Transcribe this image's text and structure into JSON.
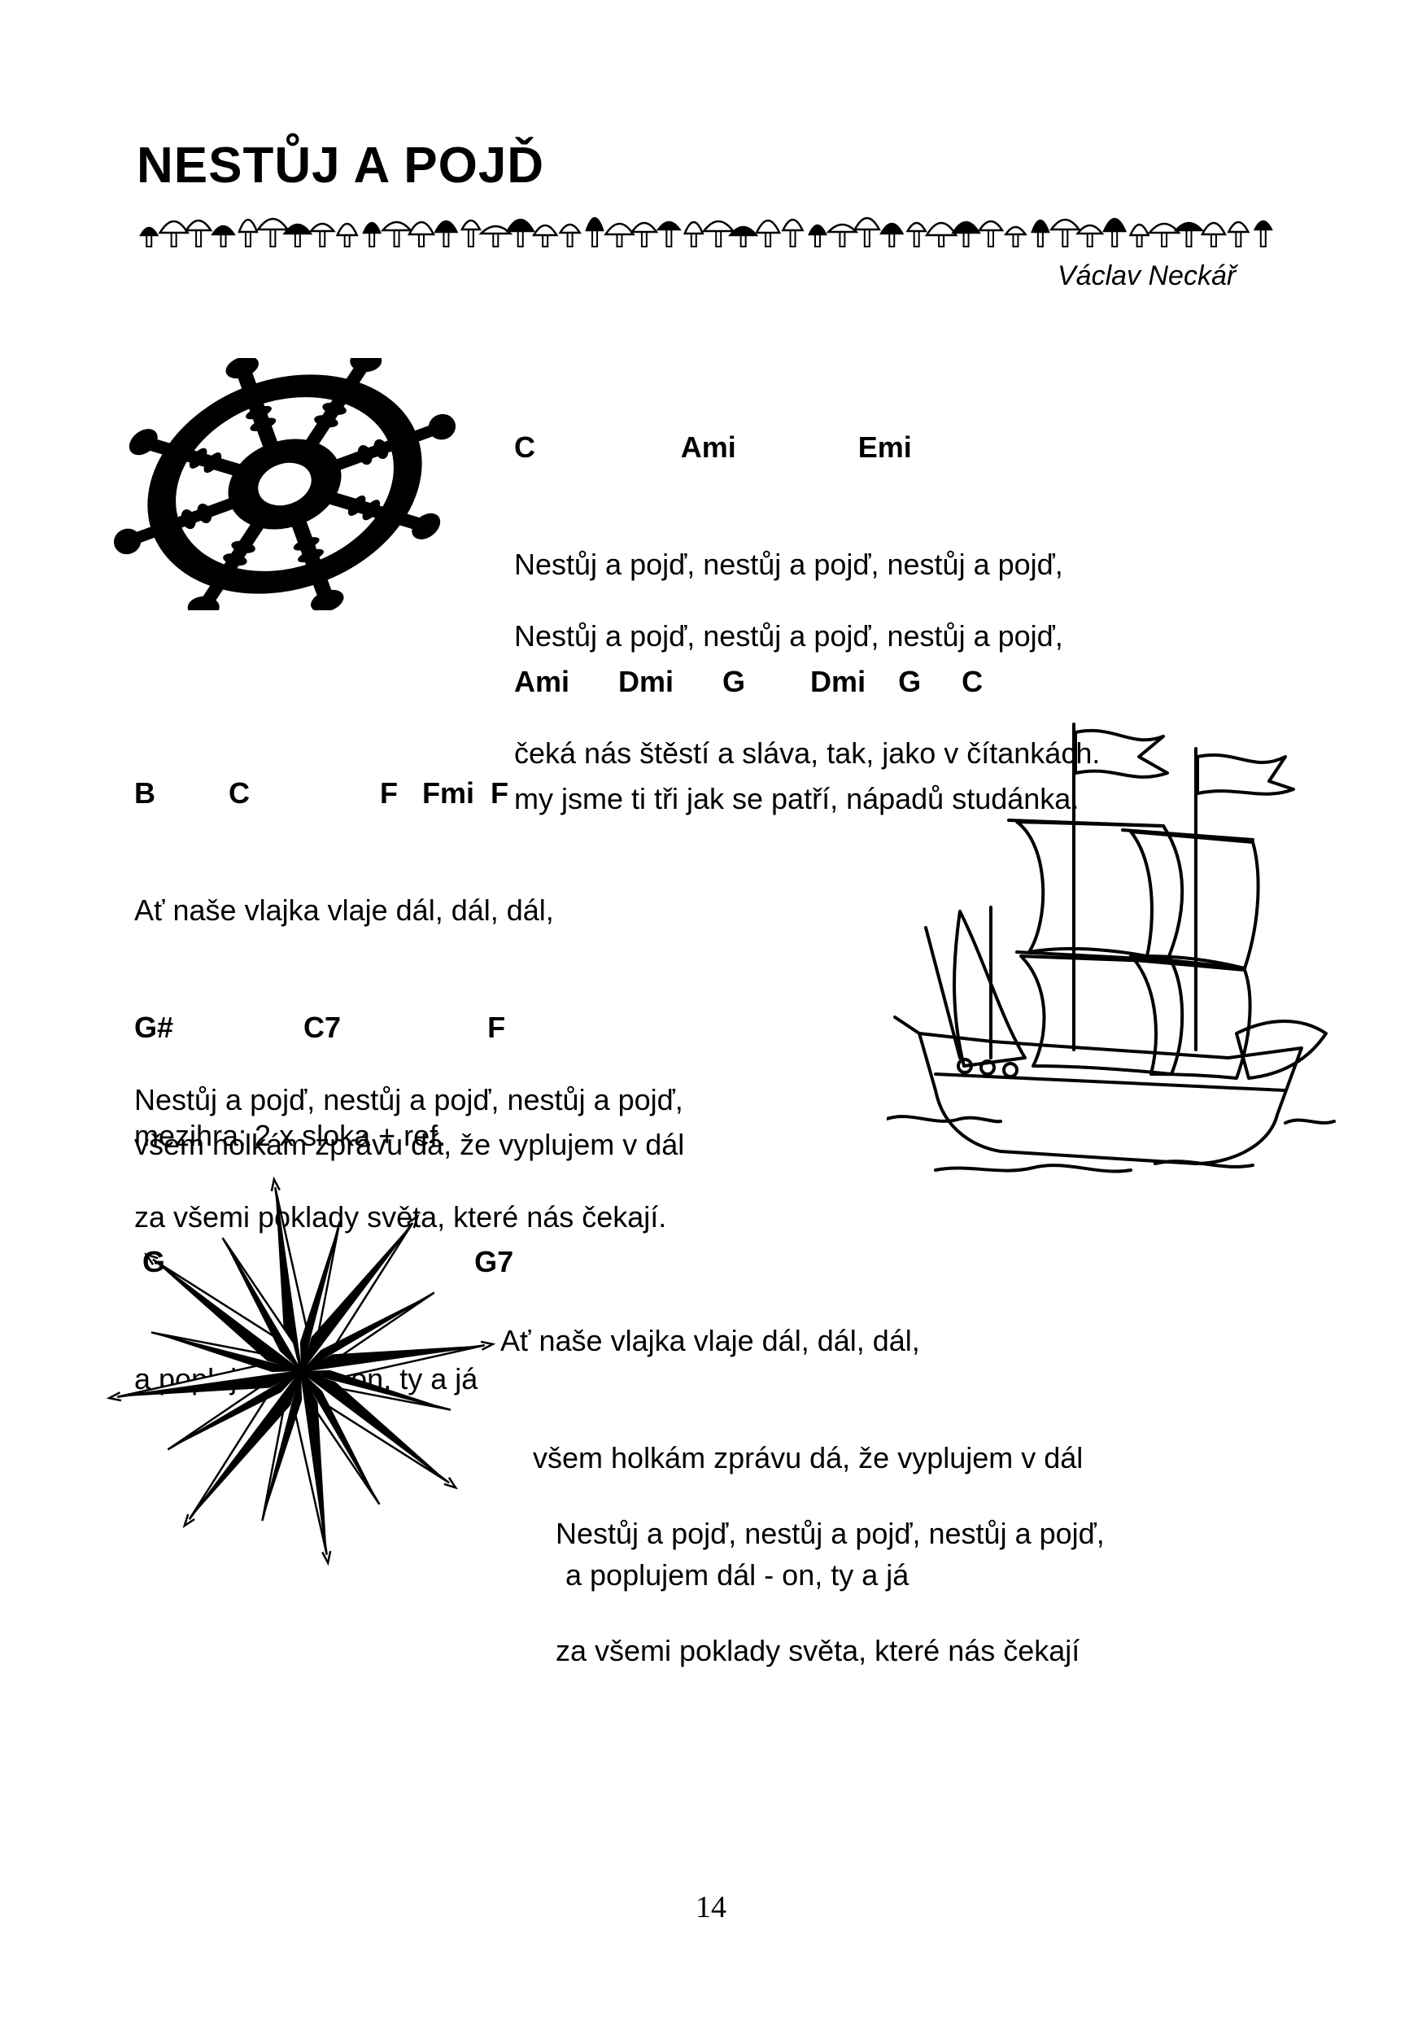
{
  "song": {
    "title": "NESTŮJ A POJĎ",
    "author": "Václav Neckář"
  },
  "verse1": {
    "chords1": "C                  Ami               Emi",
    "line1": "Nestůj a pojď, nestůj a pojď, nestůj a pojď,",
    "chords2": "Ami      Dmi      G        Dmi    G     C",
    "line2": "my jsme ti tři jak se patří, nápadů studánka."
  },
  "verse2": {
    "line1": "Nestůj a pojď, nestůj a pojď, nestůj a pojď,",
    "line2": "čeká nás štěstí a sláva, tak, jako v čítankách."
  },
  "chorus": {
    "chords1": "B         C                F   Fmi  F",
    "line1": "Ať naše vlajka vlaje dál, dál, dál,",
    "chords2": "G#                C7                  F",
    "line2": "všem holkám zprávu dá, že vyplujem v dál",
    "chords3": " G                                      G7",
    "line3": "a poplujem dál - on, ty a já"
  },
  "refrain": {
    "line1": "Nestůj a pojď, nestůj a pojď, nestůj a pojď,",
    "line2": "za všemi poklady světa, které nás čekají."
  },
  "interlude": "mezihra: 2 x sloka + ref.",
  "final_verse": {
    "line1": "Ať naše vlajka vlaje dál, dál, dál,",
    "line2": "    všem holkám zprávu dá, že vyplujem v dál",
    "line3": "        a poplujem dál - on, ty a já"
  },
  "final_refrain": {
    "line1": "Nestůj a pojď, nestůj a pojď, nestůj a pojď,",
    "line2": "za všemi poklady světa, které nás čekají"
  },
  "page_number": "14",
  "icons": {
    "wheel": "ship-wheel-icon",
    "ship": "sailing-ship-icon",
    "compass": "compass-rose-icon",
    "border": "mushroom-border-icon"
  }
}
